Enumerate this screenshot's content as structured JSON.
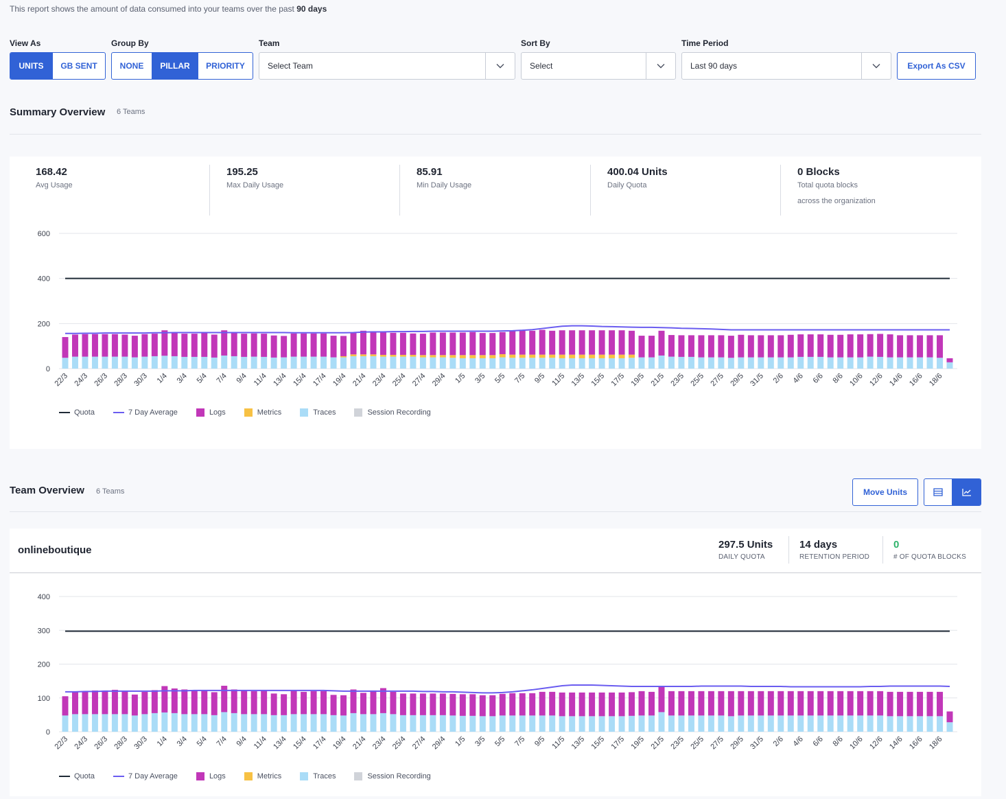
{
  "intro": {
    "text": "This report shows the amount of data consumed into your teams over the past ",
    "bold": "90 days"
  },
  "filters": {
    "view_as": {
      "label": "View As",
      "options": [
        "UNITS",
        "GB SENT"
      ],
      "selected": "UNITS"
    },
    "group_by": {
      "label": "Group By",
      "options": [
        "NONE",
        "PILLAR",
        "PRIORITY"
      ],
      "selected": "PILLAR"
    },
    "team": {
      "label": "Team",
      "value": "Select Team"
    },
    "sort_by": {
      "label": "Sort By",
      "value": "Select"
    },
    "time_period": {
      "label": "Time Period",
      "value": "Last 90 days"
    },
    "export_label": "Export As CSV"
  },
  "summary": {
    "title": "Summary Overview",
    "count": "6 Teams",
    "stats": [
      {
        "value": "168.42",
        "label": "Avg Usage"
      },
      {
        "value": "195.25",
        "label": "Max Daily Usage"
      },
      {
        "value": "85.91",
        "label": "Min Daily Usage"
      },
      {
        "value": "400.04 Units",
        "label": "Daily Quota"
      },
      {
        "value": "0 Blocks",
        "label": "Total quota blocks",
        "label2": "across the organization"
      }
    ]
  },
  "team_overview": {
    "title": "Team Overview",
    "count": "6 Teams",
    "move_units_label": "Move Units",
    "team": {
      "name": "onlineboutique",
      "quota_value": "297.5 Units",
      "quota_label": "DAILY QUOTA",
      "retention_value": "14 days",
      "retention_label": "RETENTION PERIOD",
      "blocks_value": "0",
      "blocks_label": "# OF QUOTA BLOCKS"
    }
  },
  "legend": [
    {
      "name": "Quota",
      "kind": "line",
      "color": "#1f2a36"
    },
    {
      "name": "7 Day Average",
      "kind": "line",
      "color": "#6a5cf0"
    },
    {
      "name": "Logs",
      "kind": "square",
      "color": "#c137b8"
    },
    {
      "name": "Metrics",
      "kind": "square",
      "color": "#f7c144"
    },
    {
      "name": "Traces",
      "kind": "square",
      "color": "#aadcf7"
    },
    {
      "name": "Session Recording",
      "kind": "square",
      "color": "#d0d3d9"
    }
  ],
  "colors": {
    "accent": "#3162d6",
    "blocks_green": "#2fb36b"
  },
  "icons": {
    "chevron": "chevron-down-icon",
    "table": "table-view-icon",
    "chart": "chart-view-icon"
  },
  "chart_data": [
    {
      "type": "bar",
      "stacked": true,
      "ylim": [
        0,
        600
      ],
      "yticks": [
        0,
        200,
        400,
        600
      ],
      "grid": true,
      "legend_position": "bottom-left",
      "categories": [
        "22/3",
        "23/3",
        "24/3",
        "25/3",
        "26/3",
        "27/3",
        "28/3",
        "29/3",
        "30/3",
        "31/3",
        "1/4",
        "2/4",
        "3/4",
        "4/4",
        "5/4",
        "6/4",
        "7/4",
        "8/4",
        "9/4",
        "10/4",
        "11/4",
        "12/4",
        "13/4",
        "14/4",
        "15/4",
        "16/4",
        "17/4",
        "18/4",
        "19/4",
        "20/4",
        "21/4",
        "22/4",
        "23/4",
        "24/4",
        "25/4",
        "26/4",
        "27/4",
        "28/4",
        "29/4",
        "30/4",
        "1/5",
        "2/5",
        "3/5",
        "4/5",
        "5/5",
        "6/5",
        "7/5",
        "8/5",
        "9/5",
        "10/5",
        "11/5",
        "12/5",
        "13/5",
        "14/5",
        "15/5",
        "16/5",
        "17/5",
        "18/5",
        "19/5",
        "20/5",
        "21/5",
        "22/5",
        "23/5",
        "24/5",
        "25/5",
        "26/5",
        "27/5",
        "28/5",
        "29/5",
        "30/5",
        "31/5",
        "1/6",
        "2/6",
        "3/6",
        "4/6",
        "5/6",
        "6/6",
        "7/6",
        "8/6",
        "9/6",
        "10/6",
        "11/6",
        "12/6",
        "13/6",
        "14/6",
        "15/6",
        "16/6",
        "17/6",
        "18/6",
        "19/6"
      ],
      "quota": 400,
      "series": [
        {
          "name": "Traces",
          "values": [
            48,
            53,
            53,
            53,
            53,
            53,
            53,
            50,
            53,
            55,
            57,
            55,
            52,
            52,
            52,
            49,
            58,
            55,
            52,
            53,
            52,
            49,
            50,
            53,
            53,
            53,
            53,
            50,
            50,
            55,
            55,
            55,
            53,
            53,
            53,
            53,
            50,
            50,
            50,
            48,
            46,
            46,
            46,
            46,
            50,
            48,
            48,
            48,
            48,
            48,
            46,
            46,
            46,
            46,
            46,
            46,
            46,
            48,
            50,
            50,
            58,
            53,
            52,
            52,
            50,
            50,
            50,
            48,
            50,
            50,
            50,
            50,
            50,
            50,
            52,
            52,
            52,
            50,
            50,
            50,
            50,
            53,
            52,
            50,
            50,
            50,
            50,
            50,
            48,
            28
          ]
        },
        {
          "name": "Metrics",
          "values": [
            0,
            0,
            0,
            0,
            0,
            0,
            0,
            0,
            0,
            0,
            0,
            0,
            0,
            0,
            0,
            0,
            0,
            0,
            0,
            0,
            0,
            0,
            0,
            0,
            0,
            0,
            0,
            0,
            5,
            8,
            8,
            8,
            8,
            8,
            8,
            8,
            10,
            10,
            10,
            12,
            14,
            14,
            14,
            14,
            14,
            14,
            14,
            14,
            14,
            14,
            16,
            16,
            16,
            16,
            16,
            16,
            16,
            14,
            0,
            0,
            0,
            0,
            0,
            0,
            0,
            0,
            0,
            0,
            0,
            0,
            0,
            0,
            0,
            0,
            0,
            0,
            0,
            0,
            0,
            0,
            0,
            0,
            0,
            0,
            0,
            0,
            0,
            0,
            0,
            0
          ]
        },
        {
          "name": "Logs",
          "values": [
            92,
            98,
            100,
            100,
            100,
            100,
            98,
            96,
            100,
            100,
            113,
            103,
            103,
            103,
            107,
            102,
            112,
            103,
            103,
            103,
            103,
            98,
            95,
            103,
            103,
            103,
            103,
            96,
            90,
            95,
            105,
            103,
            105,
            98,
            98,
            95,
            95,
            100,
            100,
            100,
            100,
            102,
            98,
            98,
            98,
            104,
            106,
            106,
            110,
            106,
            108,
            108,
            108,
            108,
            108,
            108,
            108,
            106,
            96,
            96,
            110,
            96,
            96,
            96,
            98,
            98,
            98,
            98,
            100,
            98,
            98,
            98,
            98,
            100,
            100,
            100,
            100,
            100,
            100,
            102,
            102,
            100,
            102,
            102,
            98,
            98,
            98,
            98,
            100,
            18
          ]
        },
        {
          "name": "Session Recording",
          "values": [
            0,
            0,
            0,
            0,
            0,
            0,
            0,
            0,
            0,
            0,
            0,
            0,
            0,
            0,
            0,
            0,
            0,
            0,
            0,
            0,
            0,
            0,
            0,
            0,
            0,
            0,
            0,
            0,
            0,
            0,
            0,
            0,
            0,
            0,
            0,
            0,
            0,
            0,
            0,
            0,
            0,
            0,
            0,
            0,
            0,
            0,
            0,
            0,
            0,
            0,
            0,
            0,
            0,
            0,
            0,
            0,
            0,
            0,
            0,
            0,
            0,
            0,
            0,
            0,
            0,
            0,
            0,
            0,
            0,
            0,
            0,
            0,
            0,
            0,
            0,
            0,
            0,
            0,
            0,
            0,
            0,
            0,
            0,
            0,
            0,
            0,
            0,
            0,
            0,
            0
          ]
        }
      ],
      "avg7": [
        156,
        156,
        157,
        157,
        158,
        158,
        158,
        158,
        158,
        159,
        159,
        160,
        160,
        160,
        160,
        160,
        160,
        160,
        160,
        160,
        160,
        160,
        160,
        159,
        159,
        159,
        159,
        159,
        159,
        160,
        162,
        163,
        163,
        164,
        164,
        165,
        165,
        166,
        166,
        166,
        166,
        166,
        166,
        166,
        167,
        168,
        170,
        173,
        178,
        183,
        188,
        190,
        190,
        189,
        187,
        186,
        185,
        184,
        183,
        183,
        182,
        181,
        179,
        178,
        177,
        176,
        174,
        172,
        172,
        172,
        172,
        172,
        172,
        172,
        172,
        172,
        172,
        172,
        172,
        172,
        172,
        172,
        172,
        172,
        172,
        172,
        172,
        172,
        172,
        172
      ]
    },
    {
      "type": "bar",
      "stacked": true,
      "ylim": [
        0,
        400
      ],
      "yticks": [
        0,
        100,
        200,
        300,
        400
      ],
      "grid": true,
      "legend_position": "bottom-left",
      "categories": "same as summary chart",
      "quota": 297.5,
      "series": [
        {
          "name": "Traces",
          "values": [
            48,
            52,
            52,
            52,
            52,
            52,
            52,
            48,
            52,
            55,
            57,
            55,
            52,
            52,
            52,
            49,
            58,
            55,
            52,
            52,
            52,
            49,
            49,
            52,
            52,
            52,
            52,
            49,
            48,
            55,
            52,
            52,
            55,
            52,
            49,
            49,
            49,
            49,
            49,
            48,
            47,
            47,
            46,
            46,
            48,
            48,
            48,
            48,
            48,
            48,
            46,
            46,
            46,
            46,
            46,
            46,
            46,
            47,
            48,
            48,
            58,
            48,
            48,
            48,
            48,
            48,
            48,
            46,
            48,
            48,
            48,
            48,
            48,
            48,
            48,
            48,
            48,
            48,
            48,
            48,
            48,
            48,
            48,
            46,
            46,
            46,
            46,
            46,
            46,
            28
          ]
        },
        {
          "name": "Metrics",
          "values": [
            0,
            0,
            0,
            0,
            0,
            0,
            0,
            0,
            0,
            0,
            0,
            0,
            0,
            0,
            0,
            0,
            0,
            0,
            0,
            0,
            0,
            0,
            0,
            0,
            0,
            0,
            0,
            0,
            0,
            0,
            0,
            0,
            0,
            0,
            0,
            0,
            0,
            0,
            0,
            0,
            0,
            0,
            0,
            0,
            0,
            0,
            0,
            0,
            0,
            0,
            0,
            0,
            0,
            0,
            0,
            0,
            0,
            0,
            0,
            0,
            0,
            0,
            0,
            0,
            0,
            0,
            0,
            0,
            0,
            0,
            0,
            0,
            0,
            0,
            0,
            0,
            0,
            0,
            0,
            0,
            0,
            0,
            0,
            0,
            0,
            0,
            0,
            0,
            0,
            0
          ]
        },
        {
          "name": "Logs",
          "values": [
            57,
            66,
            68,
            70,
            70,
            72,
            68,
            62,
            66,
            68,
            78,
            73,
            73,
            70,
            70,
            68,
            78,
            70,
            70,
            68,
            70,
            64,
            62,
            70,
            66,
            68,
            68,
            60,
            60,
            70,
            63,
            70,
            74,
            66,
            64,
            64,
            64,
            64,
            64,
            64,
            64,
            64,
            62,
            62,
            64,
            66,
            66,
            66,
            70,
            70,
            70,
            70,
            70,
            70,
            70,
            70,
            70,
            70,
            72,
            70,
            74,
            72,
            72,
            72,
            72,
            72,
            72,
            74,
            72,
            72,
            72,
            72,
            72,
            72,
            72,
            72,
            72,
            72,
            72,
            72,
            72,
            72,
            72,
            72,
            72,
            72,
            72,
            72,
            72,
            32
          ]
        },
        {
          "name": "Session Recording",
          "values": [
            0,
            0,
            0,
            0,
            0,
            0,
            0,
            0,
            0,
            0,
            0,
            0,
            0,
            0,
            0,
            0,
            0,
            0,
            0,
            0,
            0,
            0,
            0,
            0,
            0,
            0,
            0,
            0,
            0,
            0,
            0,
            0,
            0,
            0,
            0,
            0,
            0,
            0,
            0,
            0,
            0,
            0,
            0,
            0,
            0,
            0,
            0,
            0,
            0,
            0,
            0,
            0,
            0,
            0,
            0,
            0,
            0,
            0,
            0,
            0,
            0,
            0,
            0,
            0,
            0,
            0,
            0,
            0,
            0,
            0,
            0,
            0,
            0,
            0,
            0,
            0,
            0,
            0,
            0,
            0,
            0,
            0,
            0,
            0,
            0,
            0,
            0,
            0,
            0,
            0
          ]
        }
      ],
      "avg7": [
        118,
        118,
        119,
        119,
        120,
        120,
        120,
        120,
        120,
        120,
        121,
        121,
        121,
        122,
        122,
        122,
        122,
        122,
        122,
        122,
        122,
        122,
        122,
        122,
        122,
        122,
        122,
        121,
        120,
        120,
        120,
        120,
        120,
        120,
        120,
        120,
        119,
        119,
        118,
        118,
        117,
        116,
        115,
        115,
        116,
        118,
        121,
        124,
        128,
        132,
        136,
        138,
        138,
        138,
        137,
        136,
        135,
        134,
        134,
        134,
        134,
        134,
        134,
        134,
        135,
        135,
        135,
        135,
        135,
        134,
        134,
        134,
        134,
        133,
        133,
        133,
        133,
        133,
        133,
        133,
        133,
        134,
        134,
        135,
        135,
        135,
        135,
        135,
        135,
        134
      ]
    }
  ]
}
